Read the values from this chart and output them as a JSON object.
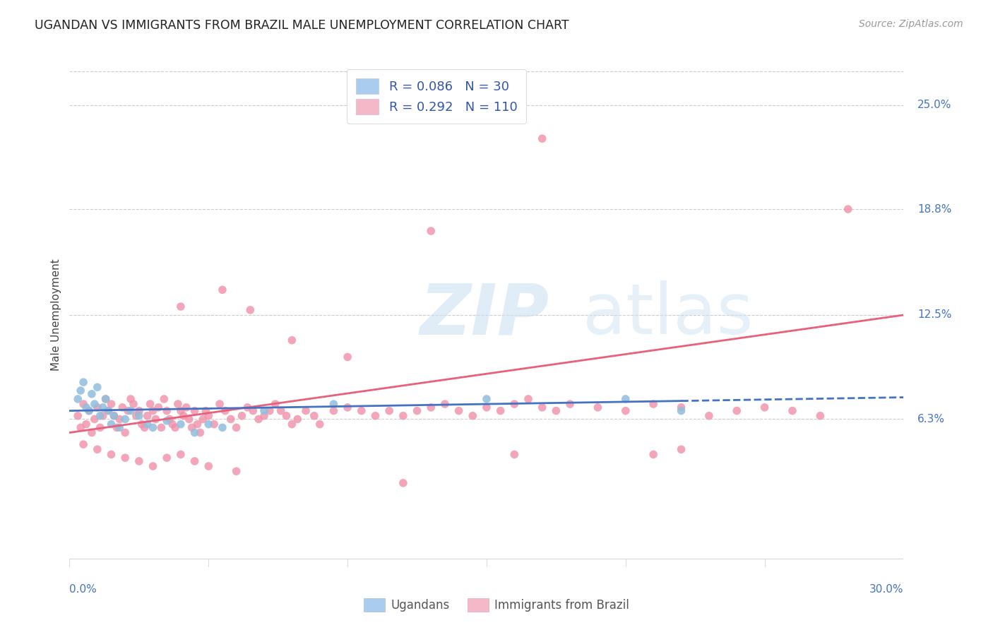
{
  "title": "UGANDAN VS IMMIGRANTS FROM BRAZIL MALE UNEMPLOYMENT CORRELATION CHART",
  "source": "Source: ZipAtlas.com",
  "ylabel": "Male Unemployment",
  "y_tick_values": [
    0.063,
    0.125,
    0.188,
    0.25
  ],
  "y_tick_labels": [
    "6.3%",
    "12.5%",
    "18.8%",
    "25.0%"
  ],
  "x_range": [
    0.0,
    0.3
  ],
  "y_range": [
    -0.025,
    0.275
  ],
  "ugandan_color": "#90bedd",
  "brazil_color": "#f090a8",
  "ugandan_trend_color": "#4472c4",
  "brazil_trend_color": "#e8607a",
  "ugandan_legend_color": "#aaccee",
  "brazil_legend_color": "#f4b8c8",
  "ugandan_scatter": [
    [
      0.003,
      0.075
    ],
    [
      0.004,
      0.08
    ],
    [
      0.005,
      0.085
    ],
    [
      0.006,
      0.07
    ],
    [
      0.007,
      0.068
    ],
    [
      0.008,
      0.078
    ],
    [
      0.009,
      0.072
    ],
    [
      0.01,
      0.082
    ],
    [
      0.011,
      0.065
    ],
    [
      0.012,
      0.07
    ],
    [
      0.013,
      0.075
    ],
    [
      0.014,
      0.068
    ],
    [
      0.015,
      0.06
    ],
    [
      0.016,
      0.065
    ],
    [
      0.018,
      0.058
    ],
    [
      0.02,
      0.063
    ],
    [
      0.022,
      0.068
    ],
    [
      0.025,
      0.065
    ],
    [
      0.028,
      0.06
    ],
    [
      0.03,
      0.058
    ],
    [
      0.035,
      0.062
    ],
    [
      0.04,
      0.06
    ],
    [
      0.045,
      0.055
    ],
    [
      0.05,
      0.06
    ],
    [
      0.055,
      0.058
    ],
    [
      0.07,
      0.068
    ],
    [
      0.095,
      0.072
    ],
    [
      0.15,
      0.075
    ],
    [
      0.2,
      0.075
    ],
    [
      0.22,
      0.068
    ]
  ],
  "brazil_scatter": [
    [
      0.003,
      0.065
    ],
    [
      0.004,
      0.058
    ],
    [
      0.005,
      0.072
    ],
    [
      0.006,
      0.06
    ],
    [
      0.007,
      0.068
    ],
    [
      0.008,
      0.055
    ],
    [
      0.009,
      0.063
    ],
    [
      0.01,
      0.07
    ],
    [
      0.011,
      0.058
    ],
    [
      0.012,
      0.065
    ],
    [
      0.013,
      0.075
    ],
    [
      0.014,
      0.068
    ],
    [
      0.015,
      0.072
    ],
    [
      0.016,
      0.065
    ],
    [
      0.017,
      0.058
    ],
    [
      0.018,
      0.063
    ],
    [
      0.019,
      0.07
    ],
    [
      0.02,
      0.055
    ],
    [
      0.021,
      0.068
    ],
    [
      0.022,
      0.075
    ],
    [
      0.023,
      0.072
    ],
    [
      0.024,
      0.065
    ],
    [
      0.025,
      0.068
    ],
    [
      0.026,
      0.06
    ],
    [
      0.027,
      0.058
    ],
    [
      0.028,
      0.065
    ],
    [
      0.029,
      0.072
    ],
    [
      0.03,
      0.068
    ],
    [
      0.031,
      0.063
    ],
    [
      0.032,
      0.07
    ],
    [
      0.033,
      0.058
    ],
    [
      0.034,
      0.075
    ],
    [
      0.035,
      0.068
    ],
    [
      0.036,
      0.063
    ],
    [
      0.037,
      0.06
    ],
    [
      0.038,
      0.058
    ],
    [
      0.039,
      0.072
    ],
    [
      0.04,
      0.068
    ],
    [
      0.041,
      0.065
    ],
    [
      0.042,
      0.07
    ],
    [
      0.043,
      0.063
    ],
    [
      0.044,
      0.058
    ],
    [
      0.045,
      0.068
    ],
    [
      0.046,
      0.06
    ],
    [
      0.047,
      0.055
    ],
    [
      0.048,
      0.063
    ],
    [
      0.049,
      0.068
    ],
    [
      0.05,
      0.065
    ],
    [
      0.052,
      0.06
    ],
    [
      0.054,
      0.072
    ],
    [
      0.056,
      0.068
    ],
    [
      0.058,
      0.063
    ],
    [
      0.06,
      0.058
    ],
    [
      0.062,
      0.065
    ],
    [
      0.064,
      0.07
    ],
    [
      0.066,
      0.068
    ],
    [
      0.068,
      0.063
    ],
    [
      0.07,
      0.065
    ],
    [
      0.072,
      0.068
    ],
    [
      0.074,
      0.072
    ],
    [
      0.076,
      0.068
    ],
    [
      0.078,
      0.065
    ],
    [
      0.08,
      0.06
    ],
    [
      0.082,
      0.063
    ],
    [
      0.085,
      0.068
    ],
    [
      0.088,
      0.065
    ],
    [
      0.09,
      0.06
    ],
    [
      0.095,
      0.068
    ],
    [
      0.1,
      0.07
    ],
    [
      0.105,
      0.068
    ],
    [
      0.11,
      0.065
    ],
    [
      0.115,
      0.068
    ],
    [
      0.12,
      0.065
    ],
    [
      0.125,
      0.068
    ],
    [
      0.13,
      0.07
    ],
    [
      0.135,
      0.072
    ],
    [
      0.14,
      0.068
    ],
    [
      0.145,
      0.065
    ],
    [
      0.15,
      0.07
    ],
    [
      0.155,
      0.068
    ],
    [
      0.16,
      0.072
    ],
    [
      0.165,
      0.075
    ],
    [
      0.17,
      0.07
    ],
    [
      0.175,
      0.068
    ],
    [
      0.18,
      0.072
    ],
    [
      0.19,
      0.07
    ],
    [
      0.2,
      0.068
    ],
    [
      0.21,
      0.072
    ],
    [
      0.22,
      0.07
    ],
    [
      0.23,
      0.065
    ],
    [
      0.24,
      0.068
    ],
    [
      0.25,
      0.07
    ],
    [
      0.26,
      0.068
    ],
    [
      0.27,
      0.065
    ],
    [
      0.005,
      0.048
    ],
    [
      0.01,
      0.045
    ],
    [
      0.015,
      0.042
    ],
    [
      0.02,
      0.04
    ],
    [
      0.025,
      0.038
    ],
    [
      0.03,
      0.035
    ],
    [
      0.035,
      0.04
    ],
    [
      0.04,
      0.042
    ],
    [
      0.045,
      0.038
    ],
    [
      0.05,
      0.035
    ],
    [
      0.06,
      0.032
    ],
    [
      0.12,
      0.025
    ],
    [
      0.16,
      0.042
    ],
    [
      0.21,
      0.042
    ],
    [
      0.22,
      0.045
    ],
    [
      0.08,
      0.11
    ],
    [
      0.1,
      0.1
    ],
    [
      0.04,
      0.13
    ],
    [
      0.055,
      0.14
    ],
    [
      0.065,
      0.128
    ],
    [
      0.13,
      0.175
    ],
    [
      0.28,
      0.188
    ],
    [
      0.17,
      0.23
    ]
  ],
  "ugandan_trend_start_x": 0.0,
  "ugandan_trend_end_solid_x": 0.22,
  "ugandan_trend_end_x": 0.3,
  "ugandan_trend_start_y": 0.068,
  "ugandan_trend_end_y": 0.076,
  "brazil_trend_start_x": 0.0,
  "brazil_trend_end_x": 0.3,
  "brazil_trend_start_y": 0.055,
  "brazil_trend_end_y": 0.125
}
